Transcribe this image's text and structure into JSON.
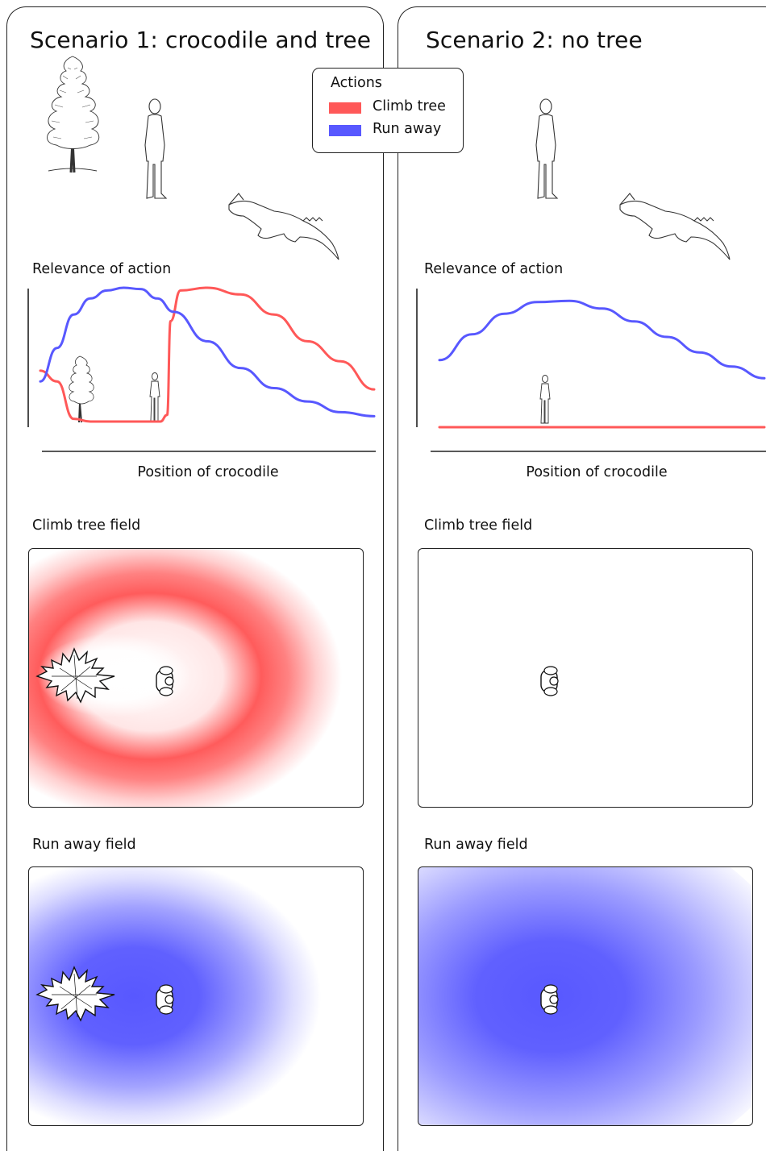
{
  "legend": {
    "title": "Actions",
    "items": [
      {
        "label": "Climb tree",
        "color": "#ff5858"
      },
      {
        "label": "Run away",
        "color": "#5858ff"
      }
    ]
  },
  "panels": [
    {
      "title": "Scenario 1: crocodile and tree",
      "has_tree": true,
      "relevance_label": "Relevance of action",
      "x_axis_label": "Position of crocodile",
      "climb_field_label": "Climb tree field",
      "run_field_label": "Run away field",
      "icons": [
        "tree-icon",
        "standing-person-icon",
        "crocodile-icon",
        "tree-top-view-icon",
        "person-top-view-icon"
      ]
    },
    {
      "title": "Scenario 2: no tree",
      "has_tree": false,
      "relevance_label": "Relevance of action",
      "x_axis_label": "Position of crocodile",
      "climb_field_label": "Climb tree field",
      "run_field_label": "Run away field",
      "icons": [
        "standing-person-icon",
        "crocodile-icon",
        "person-top-view-icon"
      ]
    }
  ],
  "chart_data": [
    {
      "type": "line",
      "title": "Relevance of action",
      "xlabel": "Position of crocodile",
      "ylabel": "",
      "series": [
        {
          "name": "Climb tree",
          "color": "#ff5858",
          "x": [
            0,
            0.05,
            0.1,
            0.15,
            0.3,
            0.36,
            0.38,
            0.39,
            0.42,
            0.5,
            0.6,
            0.7,
            0.8,
            0.9,
            1.0
          ],
          "values": [
            0.38,
            0.3,
            0.02,
            0.0,
            0.0,
            0.0,
            0.05,
            0.75,
            0.98,
            1.0,
            0.95,
            0.8,
            0.6,
            0.45,
            0.24
          ]
        },
        {
          "name": "Run away",
          "color": "#5858ff",
          "x": [
            0,
            0.05,
            0.1,
            0.15,
            0.2,
            0.25,
            0.3,
            0.35,
            0.4,
            0.5,
            0.6,
            0.7,
            0.8,
            0.9,
            1.0
          ],
          "values": [
            0.3,
            0.55,
            0.8,
            0.92,
            0.98,
            1.0,
            0.99,
            0.92,
            0.82,
            0.6,
            0.4,
            0.25,
            0.15,
            0.07,
            0.04
          ]
        }
      ]
    },
    {
      "type": "line",
      "title": "Relevance of action",
      "xlabel": "Position of crocodile",
      "ylabel": "",
      "series": [
        {
          "name": "Climb tree",
          "color": "#ff5858",
          "x": [
            0,
            1.0
          ],
          "values": [
            0.0,
            0.0
          ]
        },
        {
          "name": "Run away",
          "color": "#5858ff",
          "x": [
            0,
            0.1,
            0.2,
            0.3,
            0.4,
            0.5,
            0.6,
            0.7,
            0.8,
            0.9,
            1.0
          ],
          "values": [
            0.52,
            0.72,
            0.88,
            0.97,
            0.98,
            0.92,
            0.82,
            0.7,
            0.58,
            0.47,
            0.38
          ]
        }
      ]
    }
  ]
}
